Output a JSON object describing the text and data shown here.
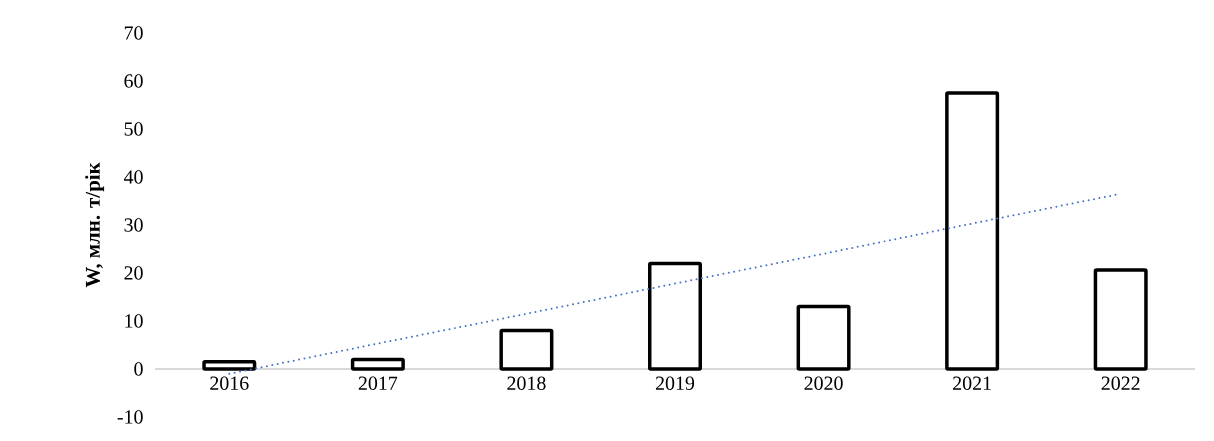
{
  "chart_data": {
    "type": "bar",
    "ylabel": "W, млн. т/рік",
    "categories": [
      "2016",
      "2017",
      "2018",
      "2019",
      "2020",
      "2021",
      "2022"
    ],
    "series": [
      {
        "color": "#000000",
        "values": [
          1.5,
          2,
          8,
          22,
          13,
          57.5,
          20.6
        ]
      },
      {
        "type": "line",
        "color": "#4472c4",
        "line_style": "dotted",
        "values": [
          -1,
          5.3,
          11.5,
          17.8,
          24,
          30.3,
          36.5
        ]
      }
    ],
    "ylim": [
      -10,
      70
    ],
    "yticks": [
      -10,
      0,
      10,
      20,
      30,
      40,
      50,
      60,
      70
    ]
  }
}
